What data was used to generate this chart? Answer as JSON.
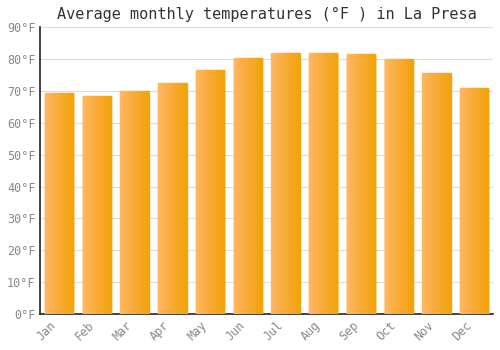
{
  "title": "Average monthly temperatures (°F ) in La Presa",
  "months": [
    "Jan",
    "Feb",
    "Mar",
    "Apr",
    "May",
    "Jun",
    "Jul",
    "Aug",
    "Sep",
    "Oct",
    "Nov",
    "Dec"
  ],
  "values": [
    69.5,
    68.5,
    70.0,
    72.5,
    76.5,
    80.5,
    82.0,
    82.0,
    81.5,
    80.0,
    75.5,
    71.0
  ],
  "bar_color_light": "#FFD966",
  "bar_color_dark": "#FFA500",
  "background_color": "#FFFFFF",
  "grid_color": "#DDDDDD",
  "ylim": [
    0,
    90
  ],
  "yticks": [
    0,
    10,
    20,
    30,
    40,
    50,
    60,
    70,
    80,
    90
  ],
  "ytick_labels": [
    "0°F",
    "10°F",
    "20°F",
    "30°F",
    "40°F",
    "50°F",
    "60°F",
    "70°F",
    "80°F",
    "90°F"
  ],
  "title_fontsize": 11,
  "tick_fontsize": 8.5,
  "text_color": "#888888",
  "spine_color": "#222222"
}
